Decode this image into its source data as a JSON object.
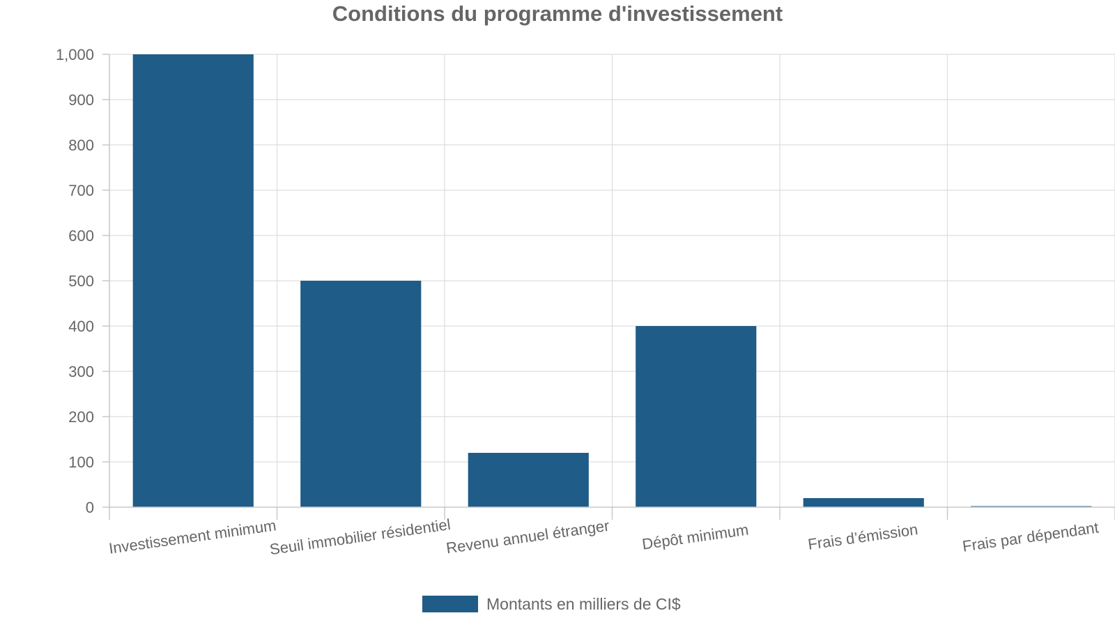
{
  "chart_data": {
    "type": "bar",
    "title": "Conditions du programme d'investissement",
    "categories": [
      "Investissement minimum",
      "Seuil immobilier résidentiel",
      "Revenu annuel étranger",
      "Dépôt minimum",
      "Frais d’émission",
      "Frais par dépendant"
    ],
    "series": [
      {
        "name": "Montants en milliers de CI$",
        "values": [
          1000,
          500,
          120,
          400,
          20,
          2
        ],
        "color": "#1f5c87"
      }
    ],
    "xlabel": "",
    "ylabel": "",
    "ylim": [
      0,
      1000
    ],
    "yticks": [
      "0",
      "100",
      "200",
      "300",
      "400",
      "500",
      "600",
      "700",
      "800",
      "900",
      "1,000"
    ],
    "grid": true,
    "legend_position": "bottom-center"
  }
}
